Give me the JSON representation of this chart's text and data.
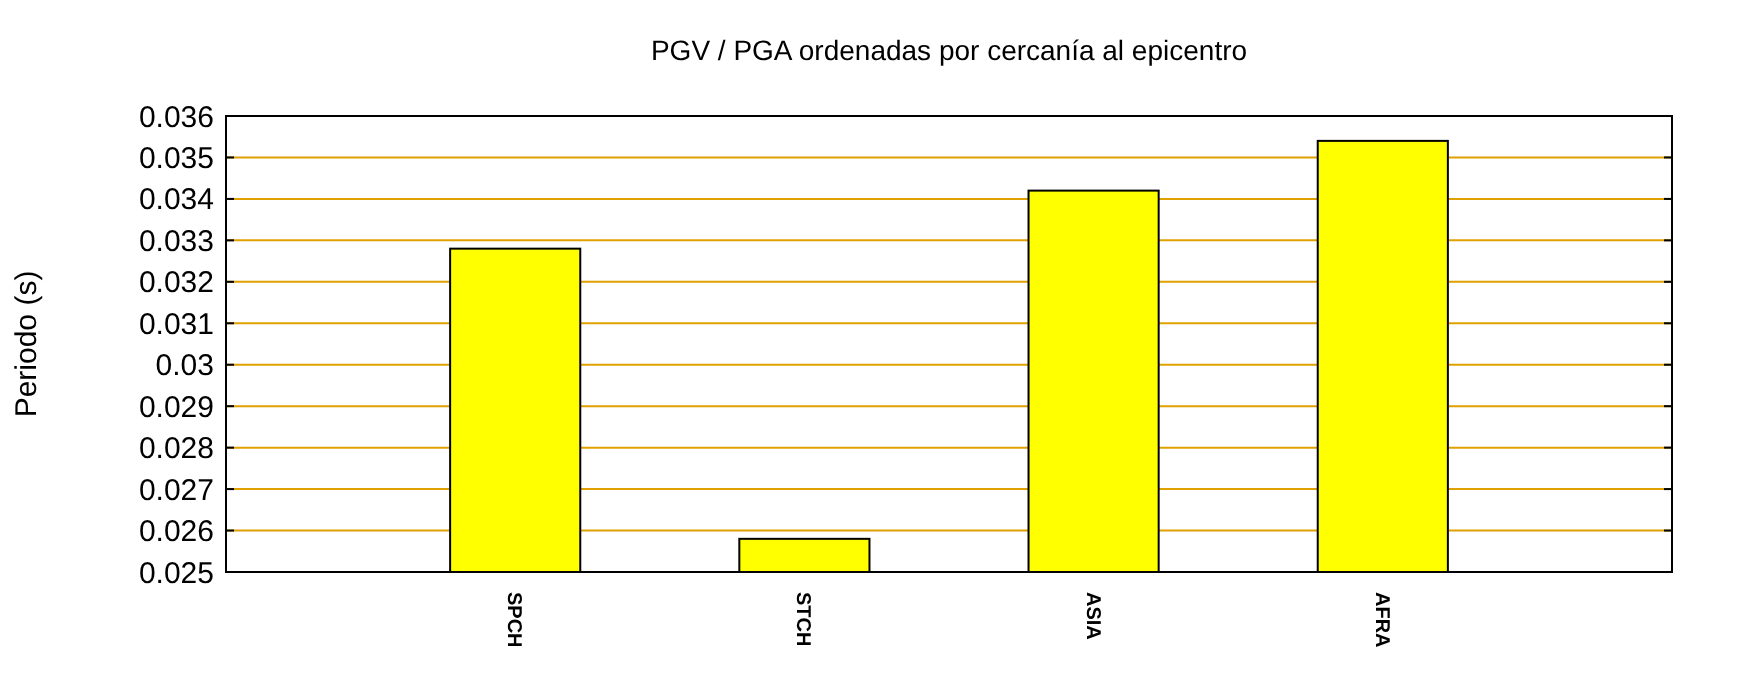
{
  "chart_data": {
    "type": "bar",
    "title": "PGV / PGA ordenadas por cercanía al epicentro",
    "ylabel": "Periodo (s)",
    "categories": [
      "SPCH",
      "STCH",
      "ASIA",
      "AFRA"
    ],
    "values": [
      0.0328,
      0.0258,
      0.0342,
      0.0354
    ],
    "color": "#ffff00",
    "ylim": [
      0.025,
      0.036
    ],
    "yticks": [
      0.025,
      0.026,
      0.027,
      0.028,
      0.029,
      0.03,
      0.031,
      0.032,
      0.033,
      0.034,
      0.035,
      0.036
    ],
    "grid": "y"
  }
}
